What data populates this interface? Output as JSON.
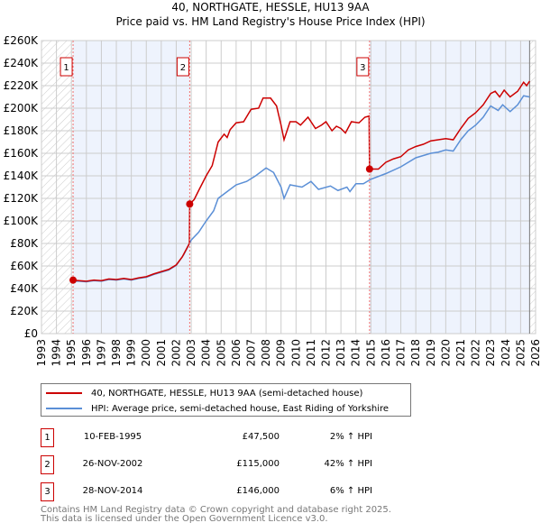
{
  "title": "40, NORTHGATE, HESSLE, HU13 9AA",
  "subtitle": "Price paid vs. HM Land Registry's House Price Index (HPI)",
  "colors": {
    "property": "#cc0000",
    "hpi": "#5b8fd6",
    "shade": "#eef3fd",
    "grid": "#cccccc"
  },
  "legend": {
    "property": "40, NORTHGATE, HESSLE, HU13 9AA (semi-detached house)",
    "hpi": "HPI: Average price, semi-detached house, East Riding of Yorkshire"
  },
  "transactions": [
    {
      "num": "1",
      "date": "10-FEB-1995",
      "price": "£47,500",
      "hpi": "2% ↑ HPI"
    },
    {
      "num": "2",
      "date": "26-NOV-2002",
      "price": "£115,000",
      "hpi": "42% ↑ HPI"
    },
    {
      "num": "3",
      "date": "28-NOV-2014",
      "price": "£146,000",
      "hpi": "6% ↑ HPI"
    }
  ],
  "footer": [
    "Contains HM Land Registry data © Crown copyright and database right 2025.",
    "This data is licensed under the Open Government Licence v3.0."
  ],
  "chart_data": {
    "type": "line",
    "xlim": [
      1993,
      2026
    ],
    "ylim": [
      0,
      260000
    ],
    "yticks": [
      0,
      20000,
      40000,
      60000,
      80000,
      100000,
      120000,
      140000,
      160000,
      180000,
      200000,
      220000,
      240000,
      260000
    ],
    "ytick_labels": [
      "£0",
      "£20K",
      "£40K",
      "£60K",
      "£80K",
      "£100K",
      "£120K",
      "£140K",
      "£160K",
      "£180K",
      "£200K",
      "£220K",
      "£240K",
      "£260K"
    ],
    "xticks": [
      1993,
      1994,
      1995,
      1996,
      1997,
      1998,
      1999,
      2000,
      2001,
      2002,
      2003,
      2004,
      2005,
      2006,
      2007,
      2008,
      2009,
      2010,
      2011,
      2012,
      2013,
      2014,
      2015,
      2016,
      2017,
      2018,
      2019,
      2020,
      2021,
      2022,
      2023,
      2024,
      2025,
      2026
    ],
    "data_end": 2025.6,
    "sales": [
      {
        "label": "1",
        "x": 1995.11,
        "y": 47500
      },
      {
        "label": "2",
        "x": 2002.9,
        "y": 115000
      },
      {
        "label": "3",
        "x": 2014.91,
        "y": 146000
      }
    ],
    "series": [
      {
        "name": "property",
        "points": [
          [
            1995.11,
            47.5
          ],
          [
            1995.5,
            47
          ],
          [
            1996,
            46.5
          ],
          [
            1996.5,
            47.5
          ],
          [
            1997,
            47
          ],
          [
            1997.5,
            48.5
          ],
          [
            1998,
            48
          ],
          [
            1998.5,
            49
          ],
          [
            1999,
            48
          ],
          [
            1999.5,
            49.5
          ],
          [
            2000,
            50.5
          ],
          [
            2000.5,
            53
          ],
          [
            2001,
            55
          ],
          [
            2001.5,
            57
          ],
          [
            2002,
            61
          ],
          [
            2002.4,
            68
          ],
          [
            2002.88,
            80
          ],
          [
            2002.9,
            115
          ],
          [
            2003.2,
            119
          ],
          [
            2003.5,
            127
          ],
          [
            2004,
            140
          ],
          [
            2004.4,
            149
          ],
          [
            2004.8,
            170
          ],
          [
            2005.2,
            177
          ],
          [
            2005.4,
            174
          ],
          [
            2005.6,
            181
          ],
          [
            2006,
            187
          ],
          [
            2006.5,
            188
          ],
          [
            2007,
            199
          ],
          [
            2007.5,
            200
          ],
          [
            2007.8,
            209
          ],
          [
            2008.3,
            209
          ],
          [
            2008.7,
            202
          ],
          [
            2009,
            185
          ],
          [
            2009.2,
            172
          ],
          [
            2009.6,
            188
          ],
          [
            2010,
            188
          ],
          [
            2010.3,
            185
          ],
          [
            2010.8,
            192
          ],
          [
            2011.3,
            182
          ],
          [
            2011.7,
            185
          ],
          [
            2012,
            188
          ],
          [
            2012.4,
            180
          ],
          [
            2012.7,
            184
          ],
          [
            2013,
            182
          ],
          [
            2013.3,
            178
          ],
          [
            2013.7,
            188
          ],
          [
            2014.2,
            187
          ],
          [
            2014.6,
            192
          ],
          [
            2014.88,
            193
          ],
          [
            2014.91,
            146
          ],
          [
            2015.5,
            146
          ],
          [
            2016,
            152
          ],
          [
            2016.5,
            155
          ],
          [
            2017,
            157
          ],
          [
            2017.5,
            163
          ],
          [
            2018,
            166
          ],
          [
            2018.5,
            168
          ],
          [
            2019,
            171
          ],
          [
            2019.5,
            172
          ],
          [
            2020,
            173
          ],
          [
            2020.5,
            172
          ],
          [
            2021,
            182
          ],
          [
            2021.5,
            191
          ],
          [
            2022,
            196
          ],
          [
            2022.5,
            203
          ],
          [
            2023,
            213
          ],
          [
            2023.3,
            215
          ],
          [
            2023.6,
            210
          ],
          [
            2023.9,
            216
          ],
          [
            2024.3,
            210
          ],
          [
            2024.8,
            215
          ],
          [
            2025.2,
            223
          ],
          [
            2025.4,
            220
          ],
          [
            2025.6,
            224
          ]
        ]
      },
      {
        "name": "hpi",
        "points": [
          [
            1995.11,
            46.5
          ],
          [
            1995.5,
            46.5
          ],
          [
            1996,
            46
          ],
          [
            1996.5,
            47
          ],
          [
            1997,
            46.5
          ],
          [
            1997.5,
            48
          ],
          [
            1998,
            47.5
          ],
          [
            1998.5,
            48.5
          ],
          [
            1999,
            47.5
          ],
          [
            1999.5,
            49
          ],
          [
            2000,
            50
          ],
          [
            2000.5,
            52.5
          ],
          [
            2001,
            54.5
          ],
          [
            2001.5,
            56.5
          ],
          [
            2002,
            60.5
          ],
          [
            2002.5,
            70
          ],
          [
            2003,
            83
          ],
          [
            2003.5,
            90
          ],
          [
            2004,
            100
          ],
          [
            2004.5,
            109
          ],
          [
            2004.8,
            120
          ],
          [
            2005.3,
            125
          ],
          [
            2006,
            132
          ],
          [
            2006.7,
            135
          ],
          [
            2007.3,
            140
          ],
          [
            2008,
            147
          ],
          [
            2008.5,
            143
          ],
          [
            2009,
            130
          ],
          [
            2009.2,
            120
          ],
          [
            2009.6,
            132
          ],
          [
            2010.4,
            130
          ],
          [
            2011,
            135
          ],
          [
            2011.5,
            128
          ],
          [
            2012.3,
            131
          ],
          [
            2012.8,
            127
          ],
          [
            2013.4,
            130
          ],
          [
            2013.6,
            126
          ],
          [
            2014,
            133
          ],
          [
            2014.5,
            133
          ],
          [
            2015,
            137
          ],
          [
            2016,
            142
          ],
          [
            2017,
            148
          ],
          [
            2018,
            156
          ],
          [
            2019,
            160
          ],
          [
            2019.5,
            161
          ],
          [
            2020,
            163
          ],
          [
            2020.5,
            162
          ],
          [
            2021,
            172
          ],
          [
            2021.5,
            180
          ],
          [
            2022,
            185
          ],
          [
            2022.5,
            192
          ],
          [
            2023,
            202
          ],
          [
            2023.5,
            198
          ],
          [
            2023.8,
            203
          ],
          [
            2024.3,
            197
          ],
          [
            2024.8,
            203
          ],
          [
            2025.2,
            211
          ],
          [
            2025.6,
            210
          ]
        ]
      }
    ]
  }
}
